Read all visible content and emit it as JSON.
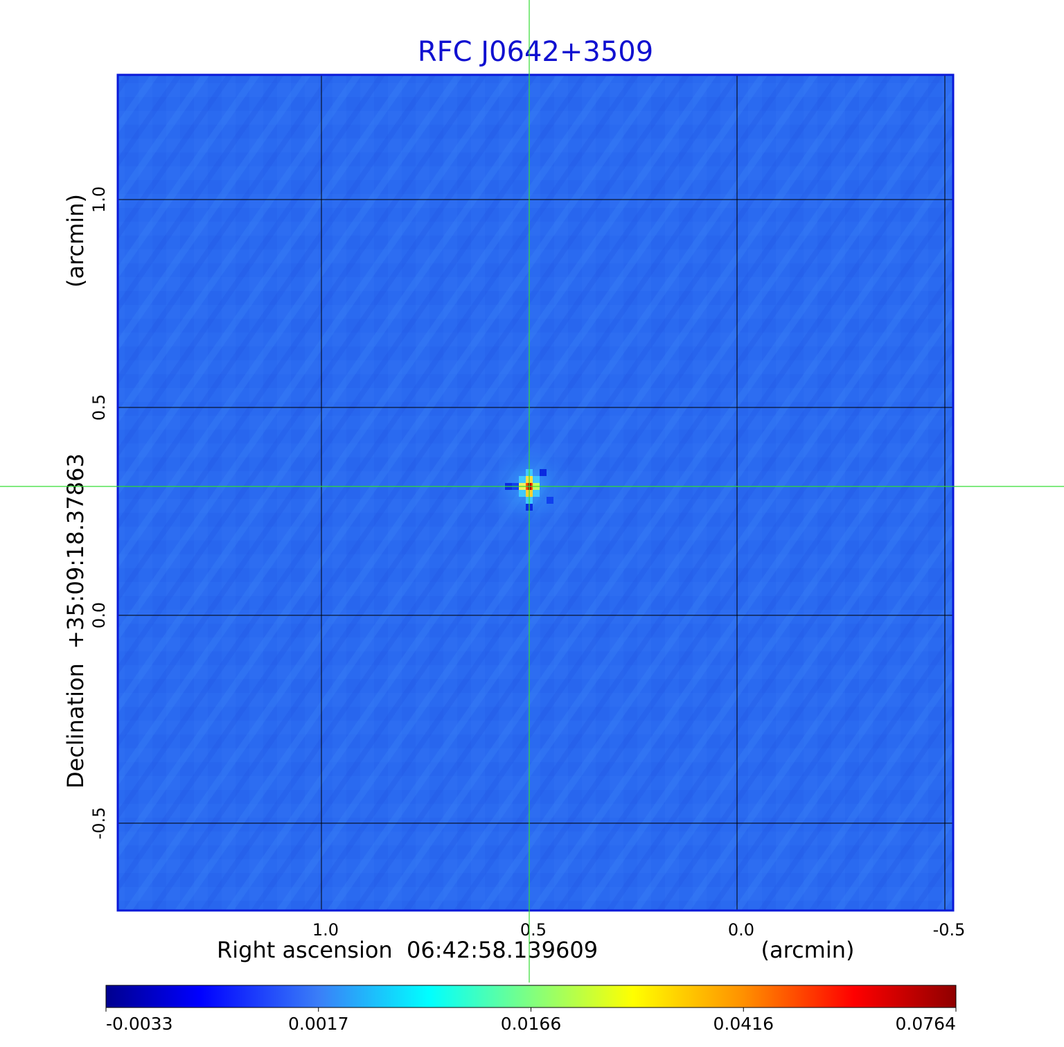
{
  "chart_data": {
    "type": "heatmap",
    "title": "RFC J0642+3509",
    "xlabel": "Right ascension  06:42:58.139609",
    "xunit": "(arcmin)",
    "ylabel": "Declination  +35:09:18.37863",
    "yunit": "(arcmin)",
    "xlim": [
      1.49,
      -0.52
    ],
    "ylim": [
      -0.71,
      1.3
    ],
    "x_ticks": [
      {
        "value": 1.0,
        "label": "1.0"
      },
      {
        "value": 0.5,
        "label": "0.5"
      },
      {
        "value": 0.0,
        "label": "0.0"
      },
      {
        "value": -0.5,
        "label": "-0.5"
      }
    ],
    "y_ticks": [
      {
        "value": 1.0,
        "label": "1.0"
      },
      {
        "value": 0.5,
        "label": "0.5"
      },
      {
        "value": 0.0,
        "label": "0.0"
      },
      {
        "value": -0.5,
        "label": "-0.5"
      }
    ],
    "grid": true,
    "source_peak": {
      "x": 0.5,
      "y": 0.31,
      "value": 0.0764
    },
    "crosshair": {
      "x": 0.5,
      "y": 0.31
    },
    "colormap": "jet",
    "colorbar": {
      "ticks": [
        "-0.0033",
        "0.0017",
        "0.0166",
        "0.0416",
        "0.0764"
      ],
      "min": -0.0033,
      "max": 0.0764
    },
    "colors": {
      "background": "#2a6af0",
      "title": "#1010d0",
      "frame": "#0a18d8",
      "crosshair": "#33dd33",
      "grid": "#000000"
    }
  }
}
